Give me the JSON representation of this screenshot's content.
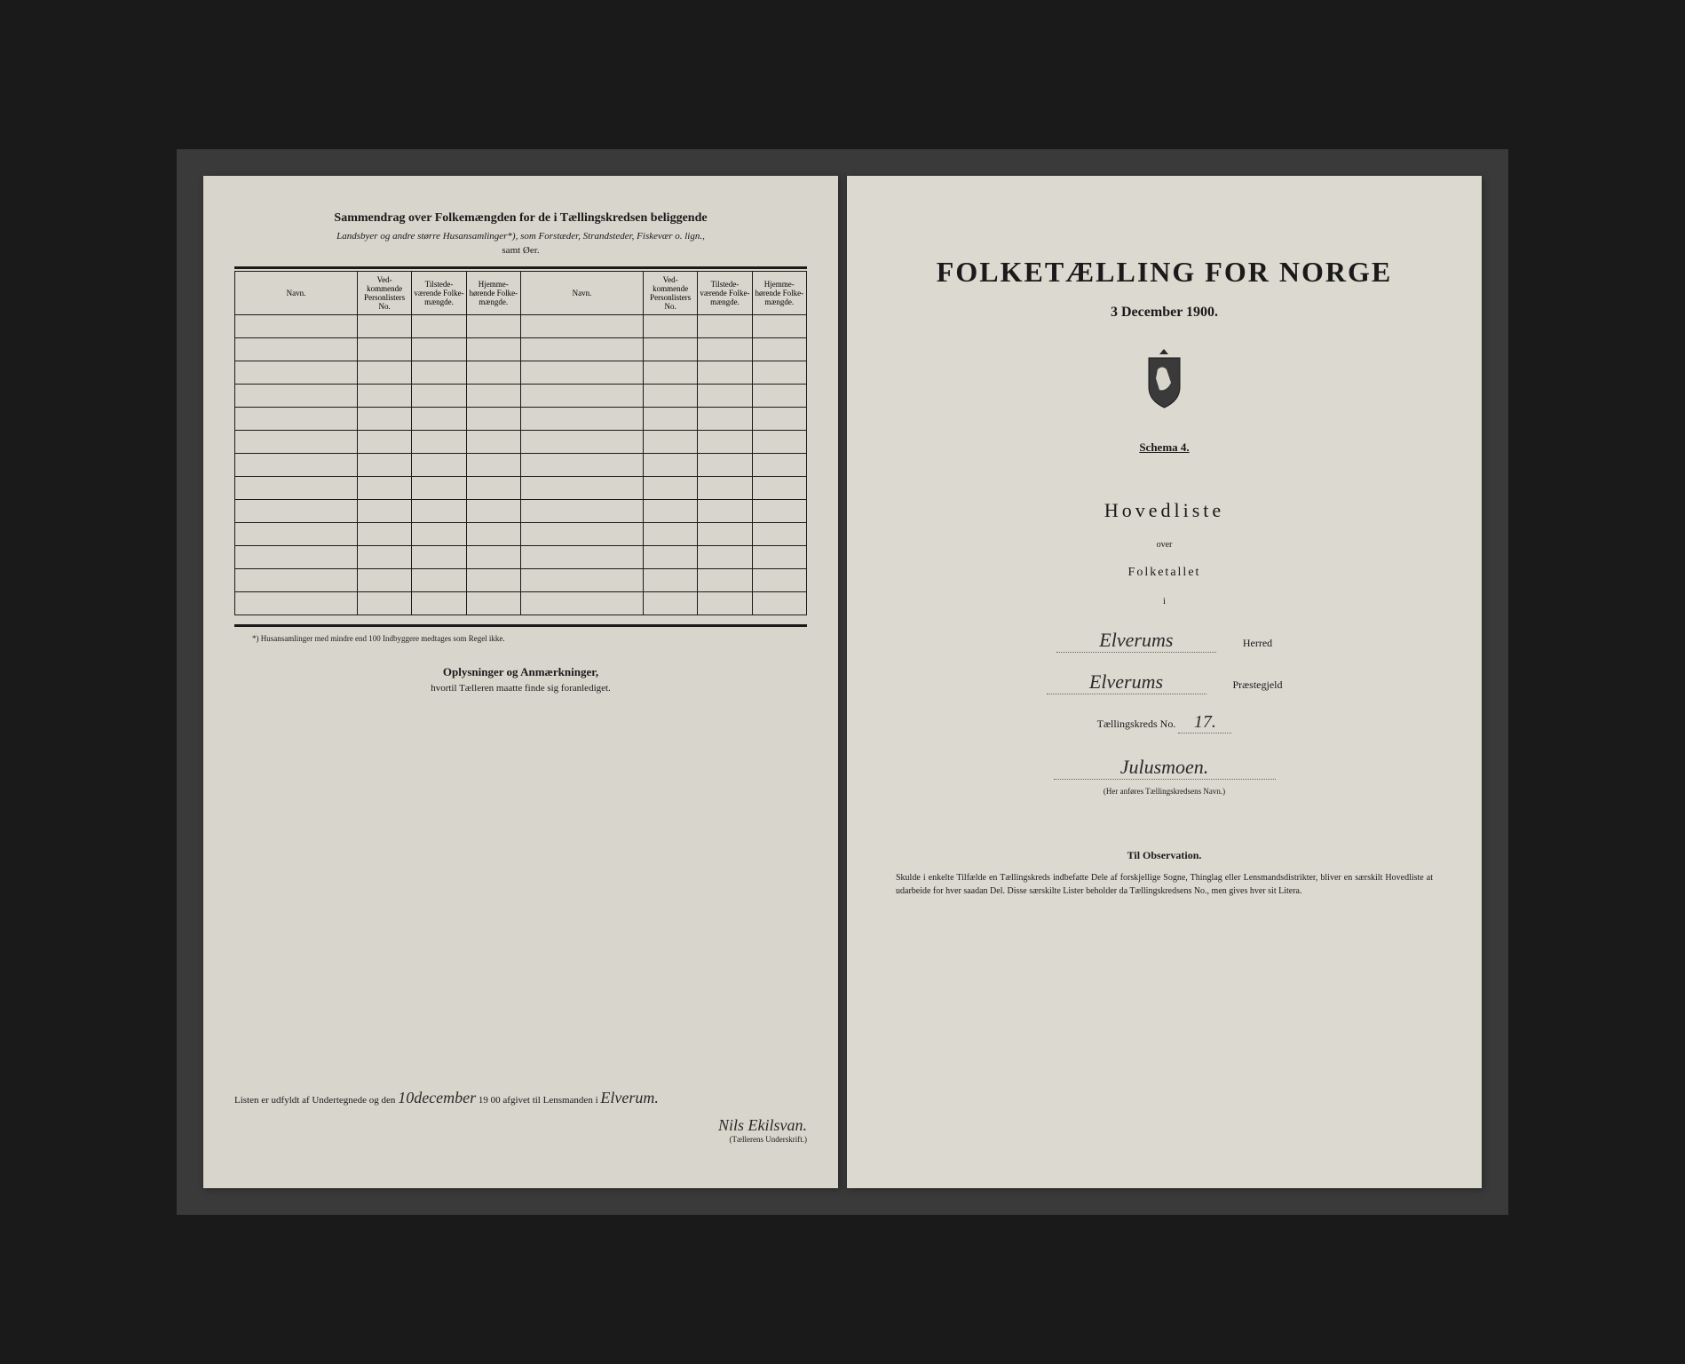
{
  "leftPage": {
    "summaryTitle": "Sammendrag over Folkemængden for de i Tællingskredsen beliggende",
    "summarySubtitle": "Landsbyer og andre større Husansamlinger*), som Forstæder, Strandsteder, Fiskevær o. lign.,",
    "summarySubtitle2": "samt Øer.",
    "tableHeaders": {
      "navn": "Navn.",
      "vedkommende": "Ved-kommende Personlisters No.",
      "tilstede": "Tilstede-værende Folke-mængde.",
      "hjemme": "Hjemme-hørende Folke-mængde."
    },
    "footnote": "*) Husansamlinger med mindre end 100 Indbyggere medtages som Regel ikke.",
    "oplysningerTitle": "Oplysninger og Anmærkninger,",
    "oplysningerSubtitle": "hvortil Tælleren maatte finde sig foranlediget.",
    "listenText1": "Listen er udfyldt af Undertegnede og den",
    "listenDate": "10december",
    "listenText2": "19 00 afgivet til Lensmanden i",
    "listenPlace": "Elverum.",
    "signature": "Nils Ekilsvan.",
    "signatureCaption": "(Tællerens Underskrift.)"
  },
  "rightPage": {
    "mainTitle": "FOLKETÆLLING FOR NORGE",
    "dateLine": "3 December 1900.",
    "schema": "Schema 4.",
    "hovedliste": "Hovedliste",
    "over": "over",
    "folketallet": "Folketallet",
    "iChar": "i",
    "herredValue": "Elverums",
    "herredLabel": "Herred",
    "prestegjeldValue": "Elverums",
    "prestegjeldLabel": "Præstegjeld",
    "kredsLabel": "Tællingskreds No.",
    "kredsValue": "17.",
    "kredsName": "Julusmoen.",
    "kredsCaption": "(Her anføres Tællingskredsens Navn.)",
    "observationTitle": "Til Observation.",
    "observationText": "Skulde i enkelte Tilfælde en Tællingskreds indbefatte Dele af forskjellige Sogne, Thinglag eller Lensmandsdistrikter, bliver en særskilt Hovedliste at udarbeide for hver saadan Del. Disse særskilte Lister beholder da Tællingskredsens No., men gives hver sit Litera."
  },
  "style": {
    "rows": 13,
    "colors": {
      "background": "#1a1a1a",
      "paper": "#d8d5cc",
      "paperRight": "#dcd9d0",
      "ink": "#1a1a1a",
      "handwriting": "#2a2a2a"
    }
  }
}
